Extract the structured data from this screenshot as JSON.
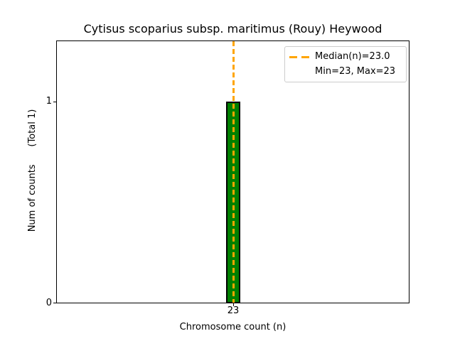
{
  "figure": {
    "title": "Cytisus scoparius subsp. maritimus (Rouy) Heywood",
    "background_color": "#ffffff"
  },
  "axes": {
    "xlabel": "Chromosome count (n)",
    "ylabel": "Num of counts      (Total 1)",
    "x_ticks": [
      {
        "label": "23"
      }
    ],
    "y_ticks": [
      {
        "label": "0"
      },
      {
        "label": "1"
      }
    ]
  },
  "legend": {
    "position": "upper right",
    "items": [
      {
        "label": "Median(n)=23.0",
        "marker": "orange-dashed-line"
      },
      {
        "label": "Min=23, Max=23",
        "marker": "none"
      }
    ]
  },
  "colors": {
    "bar_fill": "#008000",
    "bar_edge": "#000000",
    "median_line": "#FFA500",
    "legend_border": "#cccccc",
    "spine": "#000000",
    "text": "#000000"
  },
  "chart_data": {
    "type": "bar",
    "title": "Cytisus scoparius subsp. maritimus (Rouy) Heywood",
    "xlabel": "Chromosome count (n)",
    "ylabel": "Num of counts (Total 1)",
    "categories": [
      23
    ],
    "values": [
      1
    ],
    "ylim": [
      0,
      1.3
    ],
    "grid": false,
    "legend_position": "upper right",
    "bar_color": "#008000",
    "bar_edge_color": "#000000",
    "annotations": {
      "median_n": 23.0,
      "min_n": 23,
      "max_n": 23,
      "total_counts": 1,
      "median_line_style": "dashed",
      "median_line_color": "#FFA500"
    }
  }
}
